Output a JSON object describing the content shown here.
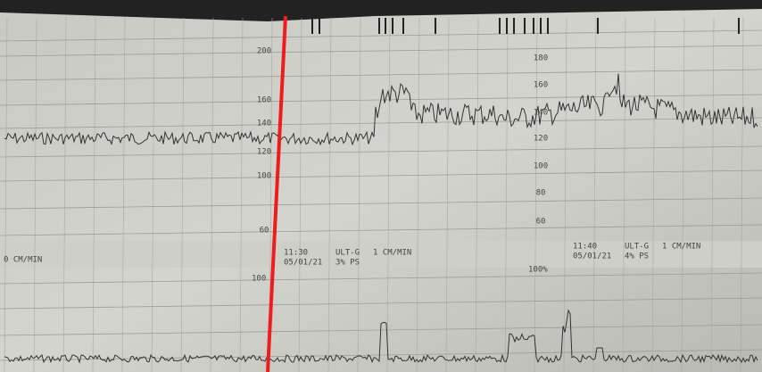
{
  "strip": {
    "left_speed": "0 CM/MIN",
    "left_scale": [
      200,
      160,
      140,
      120,
      100,
      60
    ],
    "right_scale": [
      180,
      160,
      140,
      120,
      100,
      80,
      60
    ],
    "uc_labels": [
      "100",
      "100%"
    ],
    "annotations": [
      {
        "time": "11:30",
        "date": "05/01/21",
        "mode": "ULT-G",
        "speed": "1 CM/MIN",
        "ps": "3% PS"
      },
      {
        "time": "11:40",
        "date": "05/01/21",
        "mode": "ULT-G",
        "speed": "1 CM/MIN",
        "ps": "4% PS"
      }
    ]
  }
}
